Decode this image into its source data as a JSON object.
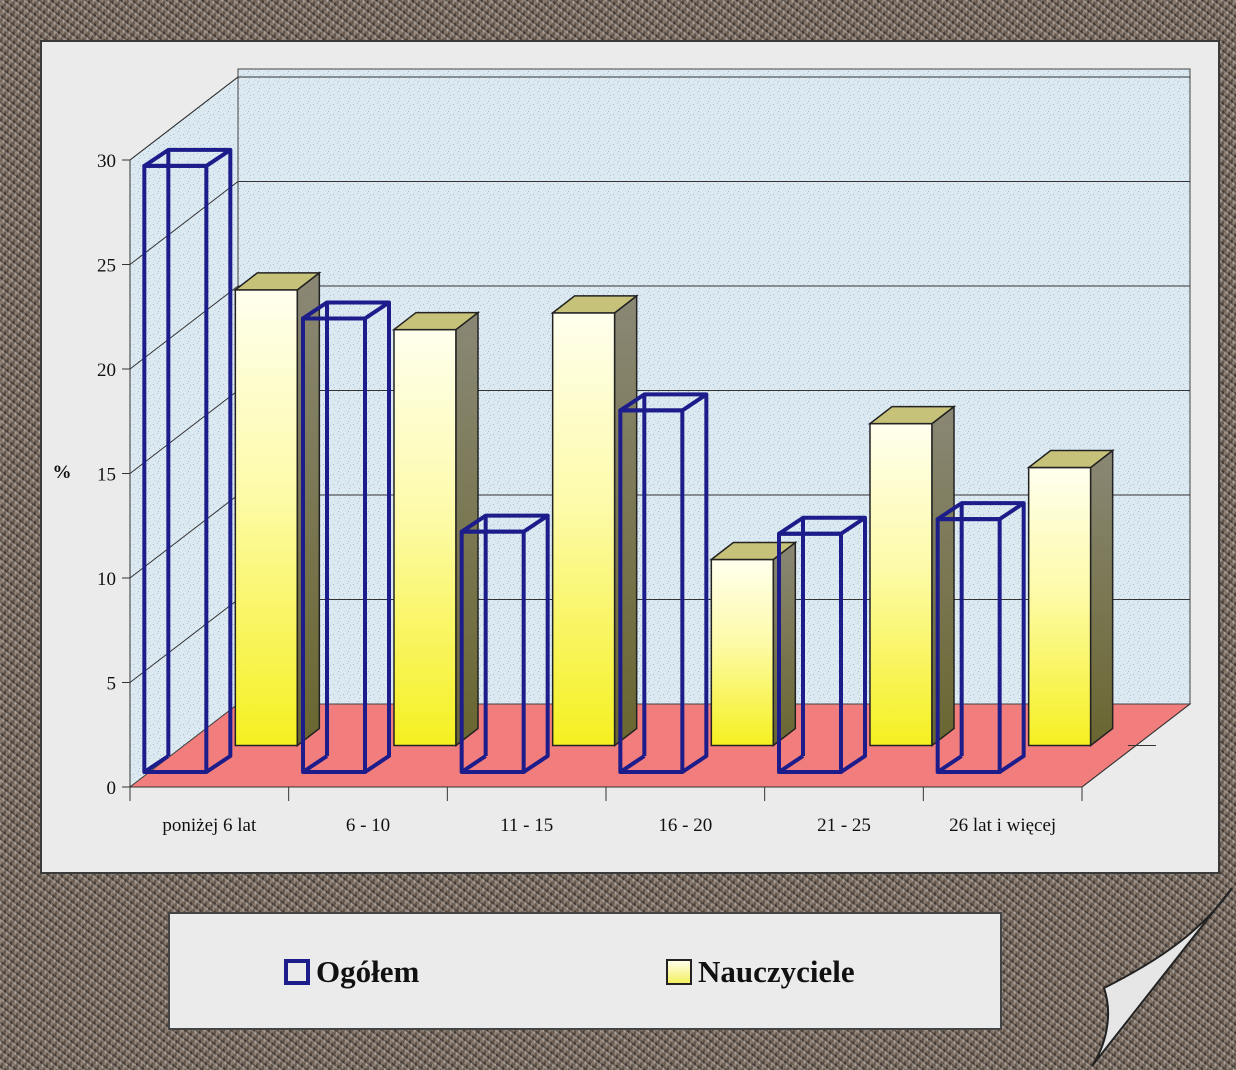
{
  "chart_data": {
    "type": "bar",
    "categories": [
      "poniżej 6 lat",
      "6 - 10",
      "11 - 15",
      "16 - 20",
      "21 - 25",
      "26 lat i więcej"
    ],
    "series": [
      {
        "name": "Ogółem",
        "values": [
          29,
          21.7,
          11.5,
          17.3,
          11.4,
          12.1
        ],
        "style": "outline",
        "color": "#1c1c8a"
      },
      {
        "name": "Nauczyciele",
        "values": [
          21.8,
          19.9,
          20.7,
          8.9,
          15.4,
          13.3
        ],
        "style": "filled",
        "color": "#f4f060"
      }
    ],
    "title": "",
    "xlabel": "",
    "ylabel": "%",
    "ylim": [
      0,
      30
    ],
    "yticks": [
      0,
      5,
      10,
      15,
      20,
      25,
      30
    ],
    "grid": true,
    "three_d": true,
    "legend_position": "bottom",
    "colors": {
      "floor": "#f27d7d",
      "walls": "#d4e4ef",
      "frame_background": "#ebebeb"
    }
  },
  "legend": {
    "items": [
      {
        "label": "Ogółem"
      },
      {
        "label": "Nauczyciele"
      }
    ]
  }
}
